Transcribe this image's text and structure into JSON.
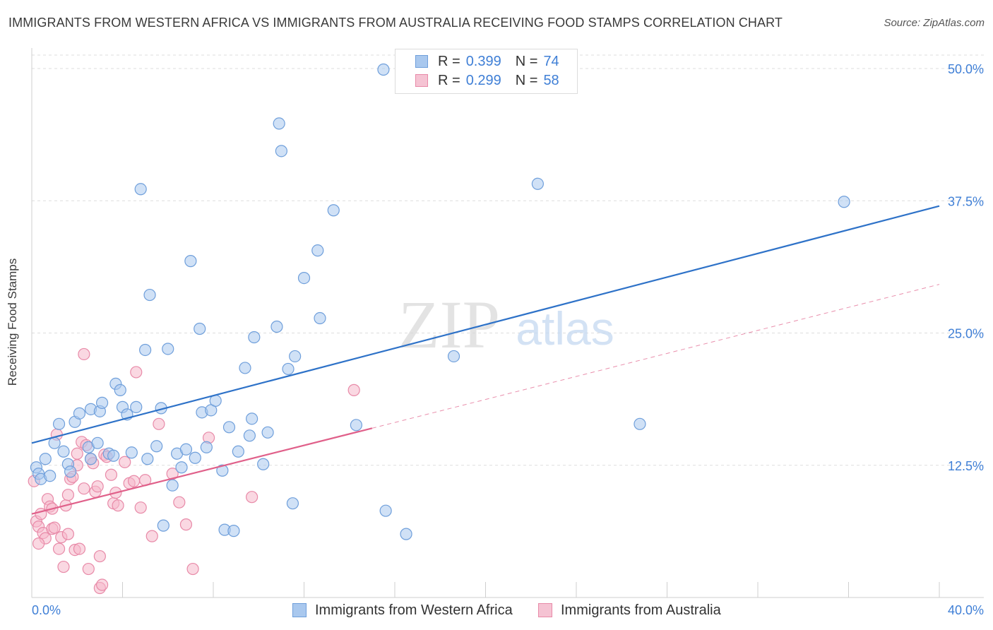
{
  "title": "IMMIGRANTS FROM WESTERN AFRICA VS IMMIGRANTS FROM AUSTRALIA RECEIVING FOOD STAMPS CORRELATION CHART",
  "source": "Source: ZipAtlas.com",
  "watermark": {
    "zip": "ZIP",
    "atlas": "atlas"
  },
  "legend": [
    {
      "r_label": "R =",
      "r_value": "0.399",
      "n_label": "N =",
      "n_value": "74"
    },
    {
      "r_label": "R =",
      "r_value": "0.299",
      "n_label": "N =",
      "n_value": "58"
    }
  ],
  "colors": {
    "blue_fill": "#a9c8ee",
    "blue_stroke": "#6f9fdb",
    "blue_line": "#2e72c8",
    "pink_fill": "#f5b8cb",
    "pink_stroke": "#e88aa8",
    "pink_line": "#e0608a",
    "axis_text": "#3f7fd6",
    "grid": "#dddddd"
  },
  "chart_data": {
    "type": "scatter",
    "title": "IMMIGRANTS FROM WESTERN AFRICA VS IMMIGRANTS FROM AUSTRALIA RECEIVING FOOD STAMPS CORRELATION CHART",
    "xlabel": "",
    "ylabel": "Receiving Food Stamps",
    "xlim": [
      0,
      40
    ],
    "ylim": [
      0,
      50
    ],
    "x_tick_labels": [
      "0.0%",
      "40.0%"
    ],
    "y_ticks": [
      12.5,
      25.0,
      37.5,
      50.0
    ],
    "y_tick_labels": [
      "12.5%",
      "25.0%",
      "37.5%",
      "50.0%"
    ],
    "grid": true,
    "legend_position": "top-center",
    "series": [
      {
        "name": "Immigrants from Western Africa",
        "color": "blue",
        "trend": {
          "x": [
            0,
            40
          ],
          "y": [
            14.6,
            37.0
          ],
          "style": "solid"
        },
        "points": [
          [
            0.2,
            12.3
          ],
          [
            0.3,
            11.7
          ],
          [
            0.4,
            11.2
          ],
          [
            0.6,
            13.1
          ],
          [
            0.8,
            11.5
          ],
          [
            1.0,
            14.6
          ],
          [
            1.2,
            16.4
          ],
          [
            1.4,
            13.8
          ],
          [
            1.6,
            12.6
          ],
          [
            1.7,
            11.9
          ],
          [
            1.9,
            16.6
          ],
          [
            2.1,
            17.4
          ],
          [
            2.5,
            14.2
          ],
          [
            2.6,
            13.1
          ],
          [
            2.6,
            17.8
          ],
          [
            2.9,
            14.6
          ],
          [
            3.0,
            17.6
          ],
          [
            3.1,
            18.4
          ],
          [
            3.4,
            13.6
          ],
          [
            3.6,
            13.4
          ],
          [
            3.7,
            20.2
          ],
          [
            3.9,
            19.6
          ],
          [
            4.0,
            18.0
          ],
          [
            4.2,
            17.3
          ],
          [
            4.4,
            13.7
          ],
          [
            4.6,
            18.0
          ],
          [
            4.8,
            38.6
          ],
          [
            5.0,
            23.4
          ],
          [
            5.1,
            13.1
          ],
          [
            5.2,
            28.6
          ],
          [
            5.5,
            14.3
          ],
          [
            5.7,
            17.9
          ],
          [
            5.8,
            6.8
          ],
          [
            6.0,
            23.5
          ],
          [
            6.2,
            10.6
          ],
          [
            6.4,
            13.6
          ],
          [
            6.6,
            12.3
          ],
          [
            6.8,
            14.0
          ],
          [
            7.0,
            31.8
          ],
          [
            7.2,
            13.2
          ],
          [
            7.4,
            25.4
          ],
          [
            7.5,
            17.5
          ],
          [
            7.7,
            14.2
          ],
          [
            7.9,
            17.7
          ],
          [
            8.1,
            18.6
          ],
          [
            8.4,
            12.0
          ],
          [
            8.5,
            6.4
          ],
          [
            8.7,
            16.1
          ],
          [
            8.9,
            6.3
          ],
          [
            9.1,
            13.8
          ],
          [
            9.4,
            21.7
          ],
          [
            9.6,
            15.3
          ],
          [
            9.7,
            16.9
          ],
          [
            9.8,
            24.6
          ],
          [
            10.2,
            12.6
          ],
          [
            10.4,
            15.6
          ],
          [
            10.8,
            25.6
          ],
          [
            10.9,
            44.8
          ],
          [
            11.0,
            42.2
          ],
          [
            11.3,
            21.6
          ],
          [
            11.5,
            8.9
          ],
          [
            11.6,
            22.8
          ],
          [
            12.0,
            30.2
          ],
          [
            12.6,
            32.8
          ],
          [
            12.7,
            26.4
          ],
          [
            13.3,
            36.6
          ],
          [
            14.3,
            16.3
          ],
          [
            15.5,
            49.9
          ],
          [
            15.6,
            8.2
          ],
          [
            16.5,
            6.0
          ],
          [
            18.6,
            22.8
          ],
          [
            22.3,
            39.1
          ],
          [
            26.8,
            16.4
          ],
          [
            35.8,
            37.4
          ]
        ]
      },
      {
        "name": "Immigrants from Australia",
        "color": "pink",
        "trend": {
          "x": [
            0,
            15
          ],
          "y": [
            7.9,
            16.0
          ],
          "style": "solid"
        },
        "trend_extended": {
          "x": [
            15,
            40
          ],
          "y": [
            16.0,
            29.6
          ],
          "style": "dashed"
        },
        "points": [
          [
            0.1,
            11.0
          ],
          [
            0.2,
            7.2
          ],
          [
            0.3,
            6.7
          ],
          [
            0.4,
            7.9
          ],
          [
            0.5,
            6.1
          ],
          [
            0.6,
            5.6
          ],
          [
            0.7,
            9.3
          ],
          [
            0.8,
            8.6
          ],
          [
            0.9,
            6.5
          ],
          [
            1.0,
            6.6
          ],
          [
            1.1,
            15.4
          ],
          [
            1.2,
            4.6
          ],
          [
            1.3,
            5.7
          ],
          [
            1.4,
            2.9
          ],
          [
            1.5,
            8.7
          ],
          [
            1.6,
            9.7
          ],
          [
            1.7,
            11.2
          ],
          [
            1.8,
            11.4
          ],
          [
            1.9,
            4.5
          ],
          [
            2.0,
            13.6
          ],
          [
            2.1,
            4.6
          ],
          [
            2.2,
            14.7
          ],
          [
            2.3,
            10.3
          ],
          [
            2.4,
            14.4
          ],
          [
            2.5,
            2.7
          ],
          [
            2.6,
            13.1
          ],
          [
            2.7,
            12.7
          ],
          [
            2.8,
            10.0
          ],
          [
            2.9,
            10.5
          ],
          [
            3.0,
            3.9
          ],
          [
            3.0,
            0.9
          ],
          [
            3.1,
            1.2
          ],
          [
            3.2,
            13.5
          ],
          [
            3.3,
            13.3
          ],
          [
            3.5,
            11.6
          ],
          [
            3.6,
            8.9
          ],
          [
            3.7,
            9.9
          ],
          [
            3.8,
            8.7
          ],
          [
            4.1,
            12.8
          ],
          [
            4.3,
            10.8
          ],
          [
            4.5,
            11.0
          ],
          [
            4.6,
            21.3
          ],
          [
            4.8,
            8.5
          ],
          [
            5.0,
            11.1
          ],
          [
            5.3,
            5.8
          ],
          [
            5.6,
            16.4
          ],
          [
            6.2,
            11.7
          ],
          [
            6.5,
            9.0
          ],
          [
            6.8,
            6.9
          ],
          [
            7.1,
            2.7
          ],
          [
            7.8,
            15.1
          ],
          [
            9.7,
            9.5
          ],
          [
            14.2,
            19.6
          ],
          [
            2.3,
            23.0
          ],
          [
            0.3,
            5.1
          ],
          [
            0.9,
            8.4
          ],
          [
            1.6,
            6.0
          ],
          [
            2.0,
            12.5
          ]
        ]
      }
    ]
  },
  "bottom_legend": {
    "blue": "Immigrants from Western Africa",
    "pink": "Immigrants from Australia"
  }
}
